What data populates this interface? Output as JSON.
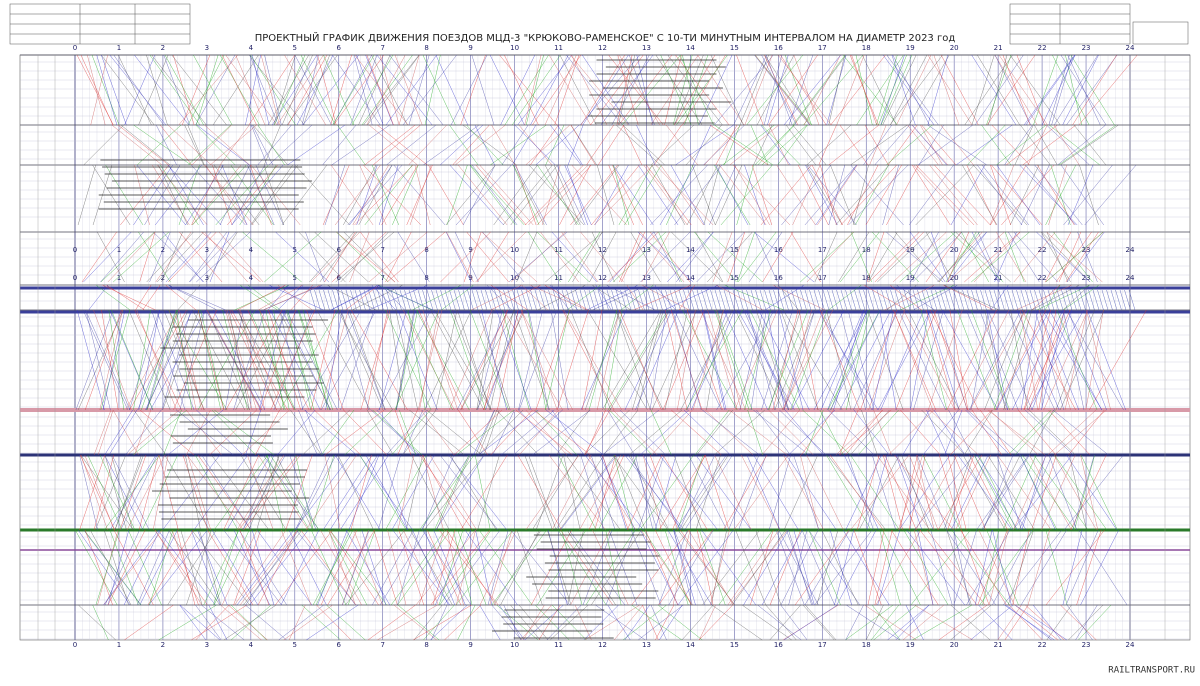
{
  "title": "ПРОЕКТНЫЙ ГРАФИК ДВИЖЕНИЯ ПОЕЗДОВ МЦД-3 \"КРЮКОВО-РАМЕНСКОЕ\" С 10-ТИ МИНУТНЫМ ИНТЕРВАЛОМ НА ДИАМЕТР 2023 год",
  "hours": [
    0,
    1,
    2,
    3,
    4,
    5,
    6,
    7,
    8,
    9,
    10,
    11,
    12,
    13,
    14,
    15,
    16,
    17,
    18,
    19,
    20,
    21,
    22,
    23,
    24
  ],
  "watermark": "RAILTRANSPORT.RU"
}
